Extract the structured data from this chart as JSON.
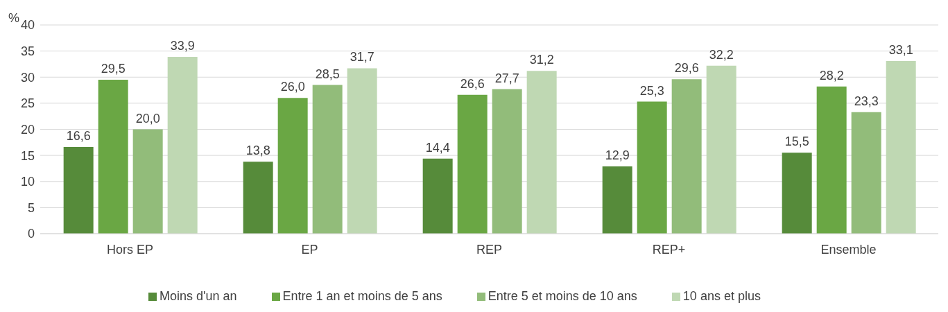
{
  "chart_data": {
    "type": "bar",
    "ylabel": "%",
    "categories": [
      "Hors EP",
      "EP",
      "REP",
      "REP+",
      "Ensemble"
    ],
    "series": [
      {
        "name": "Moins d'un an",
        "color": "#568b3a",
        "values": [
          16.6,
          13.8,
          14.4,
          12.9,
          15.5
        ],
        "value_labels": [
          "16,6",
          "13,8",
          "14,4",
          "12,9",
          "15,5"
        ]
      },
      {
        "name": "Entre 1 an et moins de 5 ans",
        "color": "#6aa744",
        "values": [
          29.5,
          26.0,
          26.6,
          25.3,
          28.2
        ],
        "value_labels": [
          "29,5",
          "26,0",
          "26,6",
          "25,3",
          "28,2"
        ]
      },
      {
        "name": "Entre 5 et moins de 10 ans",
        "color": "#92bc7a",
        "values": [
          20.0,
          28.5,
          27.7,
          29.6,
          23.3
        ],
        "value_labels": [
          "20,0",
          "28,5",
          "27,7",
          "29,6",
          "23,3"
        ]
      },
      {
        "name": "10 ans et plus",
        "color": "#bfd8b3",
        "values": [
          33.9,
          31.7,
          31.2,
          32.2,
          33.1
        ],
        "value_labels": [
          "33,9",
          "31,7",
          "31,2",
          "32,2",
          "33,1"
        ]
      }
    ],
    "ylim": [
      0,
      40
    ],
    "yticks": [
      0,
      5,
      10,
      15,
      20,
      25,
      30,
      35,
      40
    ],
    "grid": "y",
    "legend": "bottom"
  }
}
